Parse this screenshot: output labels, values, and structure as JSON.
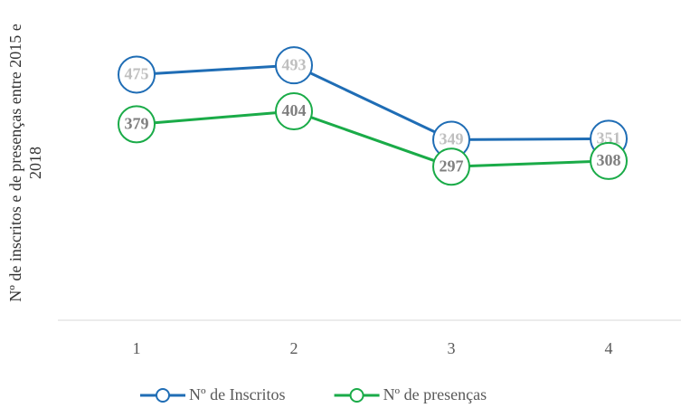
{
  "chart_data": {
    "type": "line",
    "y_label": "Nº de inscritos e de presenças entre 2015 e 2018",
    "categories": [
      "1",
      "2",
      "3",
      "4"
    ],
    "series": [
      {
        "name": "Nº de Inscritos",
        "color": "#1f6db5",
        "label_color": "#bfbfbf",
        "values": [
          475,
          493,
          349,
          351
        ]
      },
      {
        "name": "Nº de presenças",
        "color": "#1aab48",
        "label_color": "#7f7f7f",
        "values": [
          379,
          404,
          297,
          308
        ]
      }
    ],
    "ylim": [
      0,
      600
    ],
    "legend": "bottom"
  }
}
